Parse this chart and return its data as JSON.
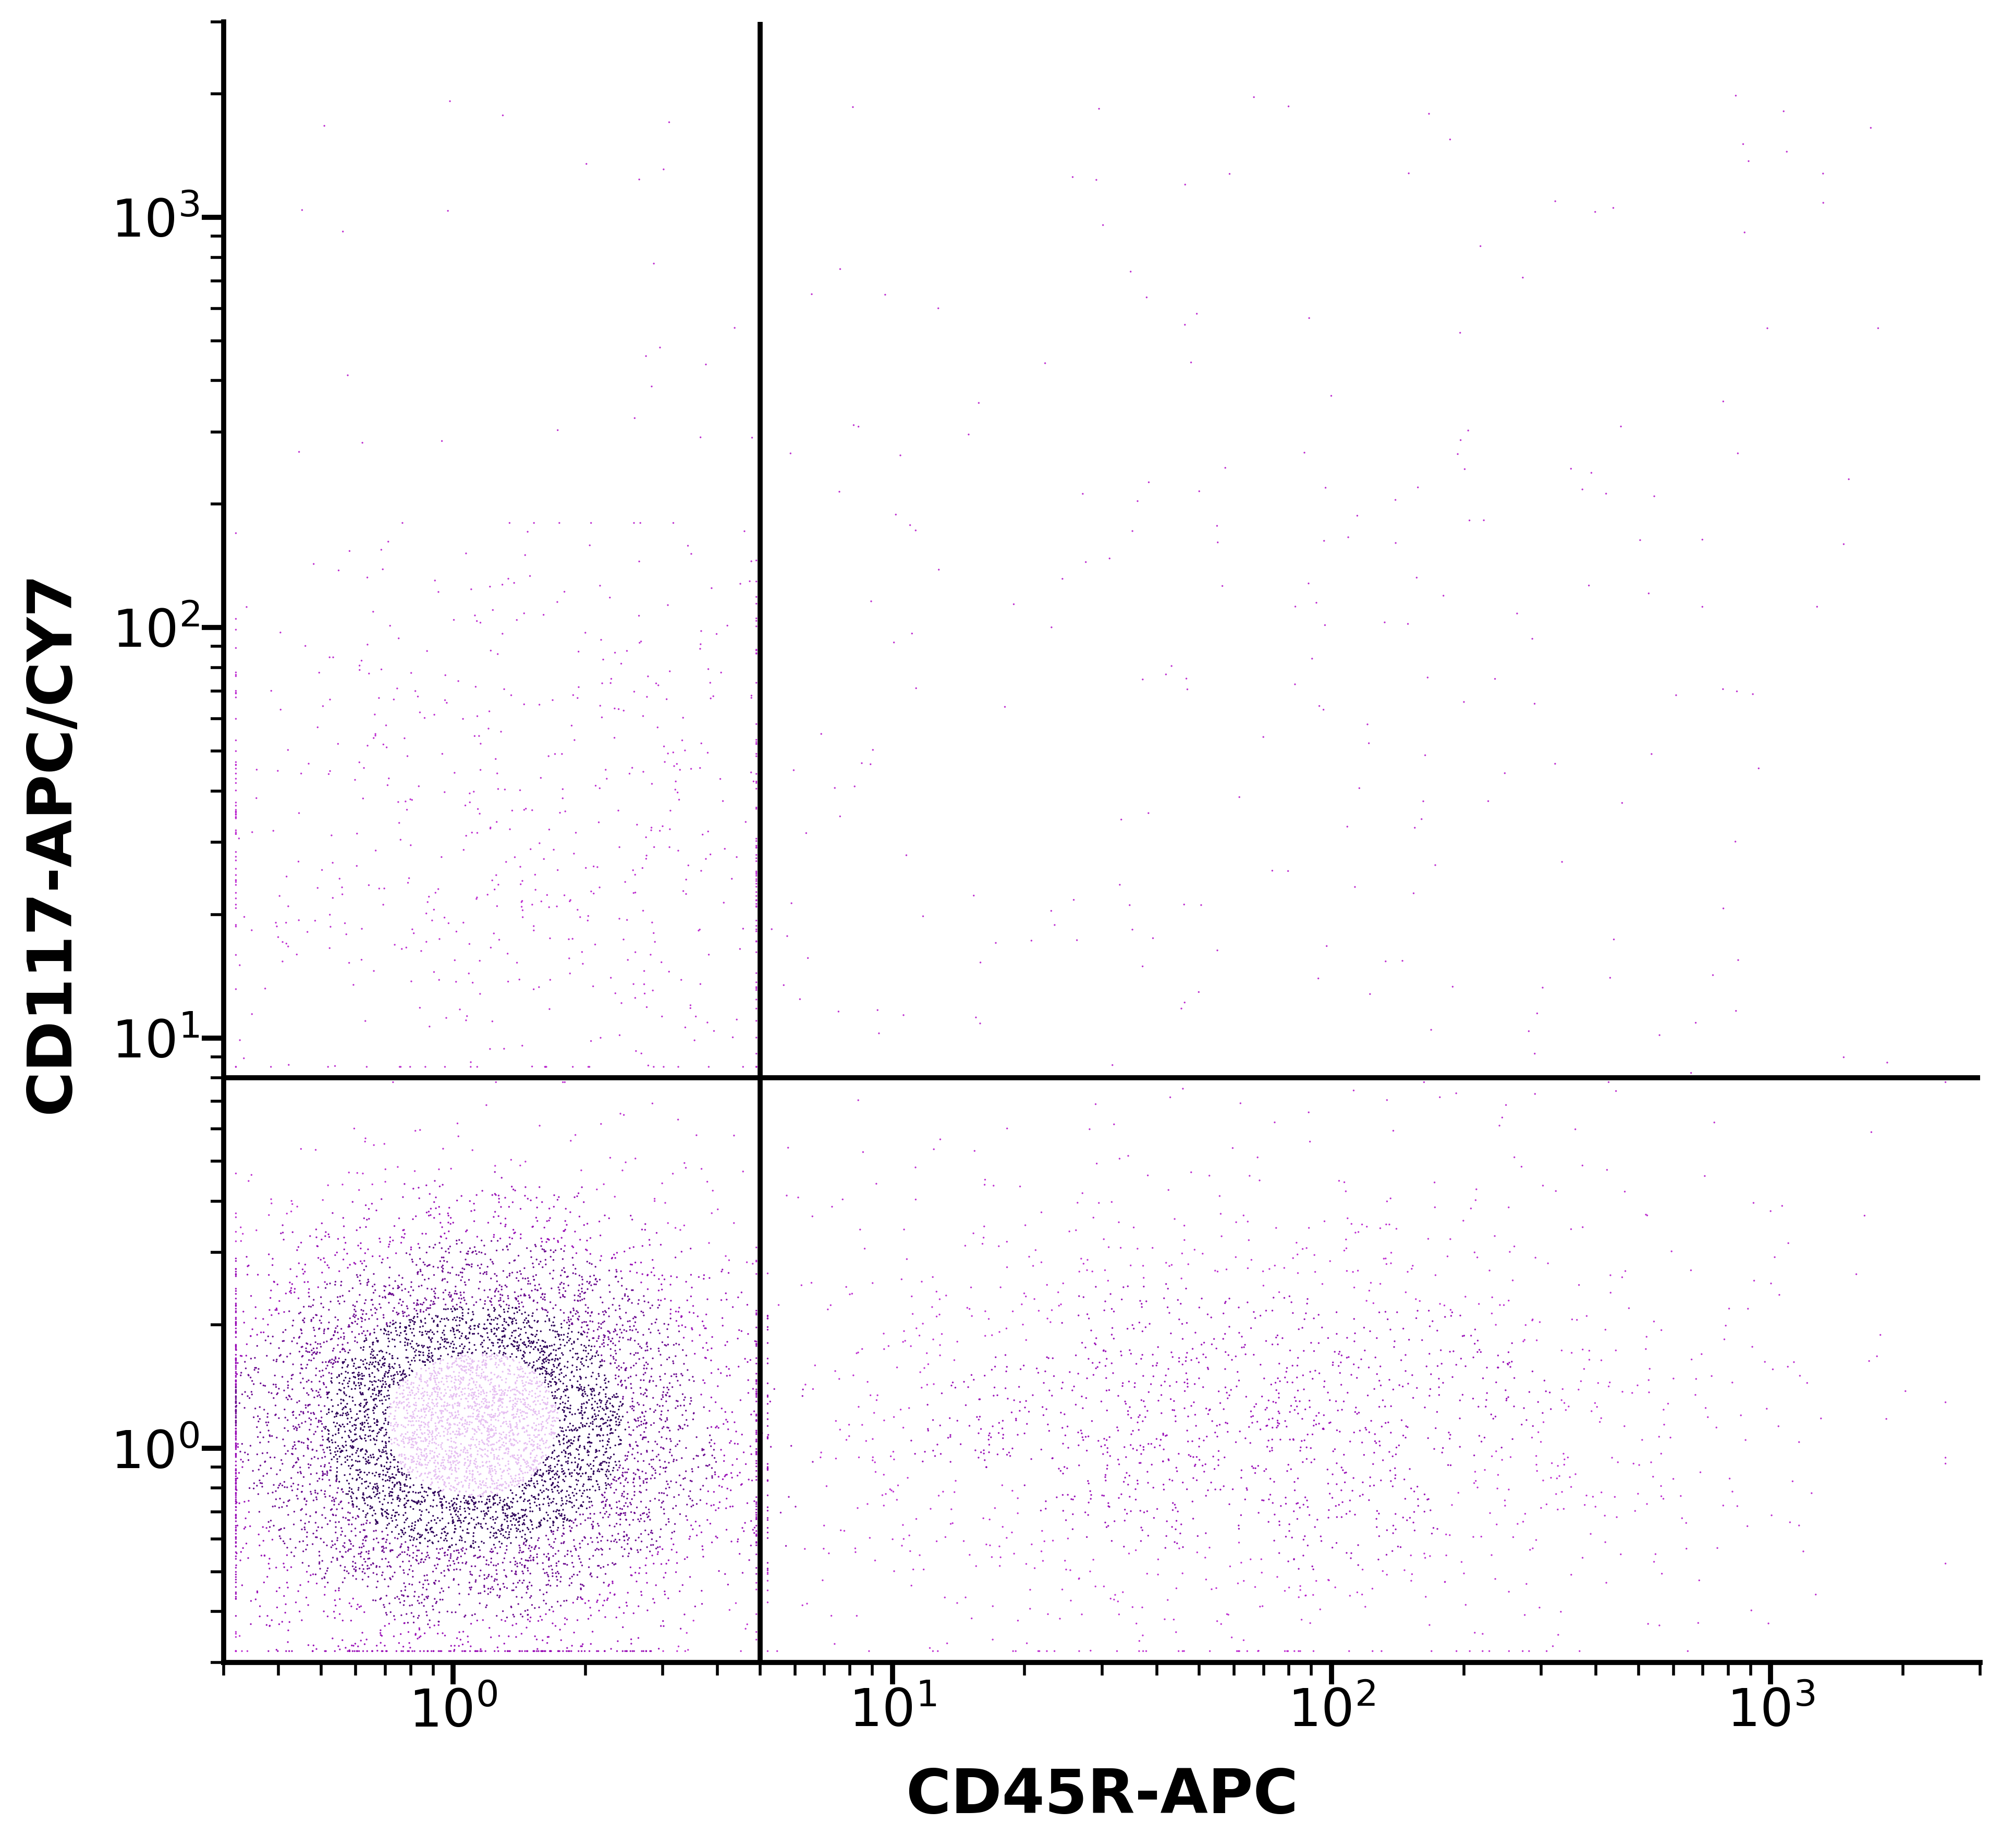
{
  "xlabel": "CD45R-APC",
  "ylabel": "CD117-APC/CY7",
  "xlim": [
    0.3,
    3000
  ],
  "ylim": [
    0.3,
    3000
  ],
  "gate_x": 5.0,
  "gate_y": 8.0,
  "xlabel_fontsize": 85,
  "ylabel_fontsize": 85,
  "tick_fontsize": 72,
  "linewidth": 7,
  "marker_size": 6,
  "background_color": "#ffffff",
  "dot_color": "#8B008B",
  "dot_color_medium": "#6A0080",
  "dot_color_dense": "#2d006b"
}
